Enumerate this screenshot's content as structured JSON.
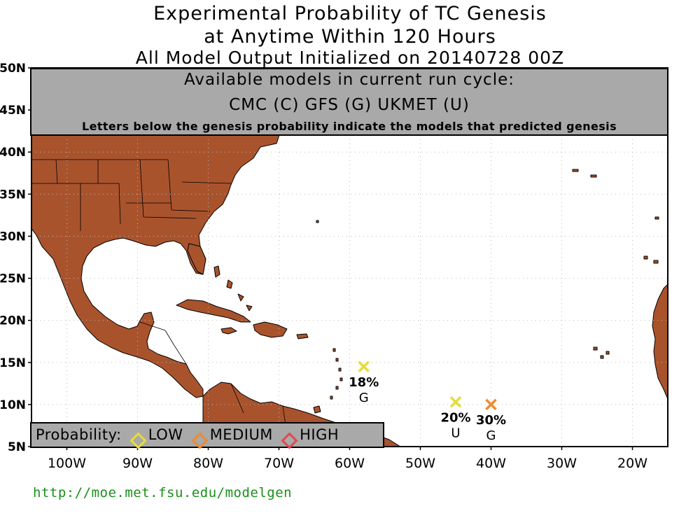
{
  "title": {
    "line1": "Experimental Probability of TC Genesis",
    "line2": "at Anytime Within 120 Hours",
    "line3": "All Model Output Initialized on 20140728 00Z"
  },
  "banner": {
    "line1": "Available models in current run cycle:",
    "line2": "CMC (C) GFS (G)  UKMET (U)",
    "line3": "Letters below the genesis probability indicate the models that predicted genesis"
  },
  "axes": {
    "lat_labels": [
      "50N",
      "45N",
      "40N",
      "35N",
      "30N",
      "25N",
      "20N",
      "15N",
      "10N",
      "5N"
    ],
    "lat_values": [
      50,
      45,
      40,
      35,
      30,
      25,
      20,
      15,
      10,
      5
    ],
    "lon_labels": [
      "100W",
      "90W",
      "80W",
      "70W",
      "60W",
      "50W",
      "40W",
      "30W",
      "20W"
    ],
    "lon_values": [
      -100,
      -90,
      -80,
      -70,
      -60,
      -50,
      -40,
      -30,
      -20
    ],
    "lon_range": [
      -105,
      -15
    ],
    "lat_range": [
      5,
      50
    ]
  },
  "genesis_points": [
    {
      "lon": -58,
      "lat": 14.5,
      "probability": "18%",
      "models": "G",
      "color": "#e6dc3a"
    },
    {
      "lon": -45,
      "lat": 10.3,
      "probability": "20%",
      "models": "U",
      "color": "#e6dc3a"
    },
    {
      "lon": -40,
      "lat": 10.0,
      "probability": "30%",
      "models": "G",
      "color": "#ee8a2e"
    }
  ],
  "legend": {
    "label": "Probability:",
    "items": [
      {
        "name": "LOW",
        "color": "#e6dc3a"
      },
      {
        "name": "MEDIUM",
        "color": "#ee8a2e"
      },
      {
        "name": "HIGH",
        "color": "#e8464a"
      }
    ]
  },
  "colors": {
    "land": "#a9532d",
    "ocean": "#ffffff",
    "gridline": "#bbbbbb"
  },
  "url": "http://moe.met.fsu.edu/modelgen"
}
